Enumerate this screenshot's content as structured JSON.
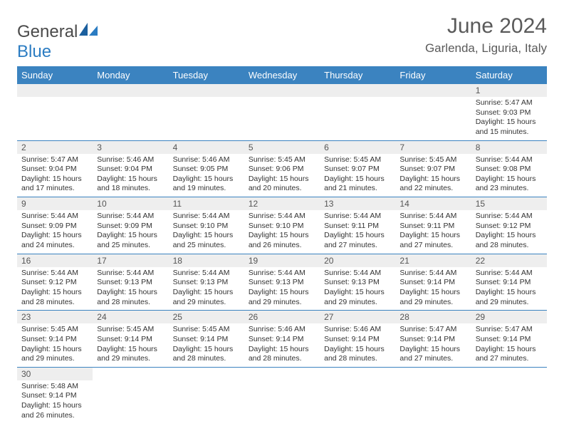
{
  "logo": {
    "text1": "General",
    "text2": "Blue"
  },
  "title": "June 2024",
  "location": "Garlenda, Liguria, Italy",
  "colors": {
    "header_bg": "#3b83c0",
    "header_text": "#ffffff",
    "daynum_bg": "#eeeeee",
    "cell_border": "#3b83c0",
    "text": "#333333",
    "title_text": "#5a5a5a",
    "logo_blue": "#2b7cc2"
  },
  "weekdays": [
    "Sunday",
    "Monday",
    "Tuesday",
    "Wednesday",
    "Thursday",
    "Friday",
    "Saturday"
  ],
  "weeks": [
    [
      null,
      null,
      null,
      null,
      null,
      null,
      {
        "n": "1",
        "sr": "Sunrise: 5:47 AM",
        "ss": "Sunset: 9:03 PM",
        "dl1": "Daylight: 15 hours",
        "dl2": "and 15 minutes."
      }
    ],
    [
      {
        "n": "2",
        "sr": "Sunrise: 5:47 AM",
        "ss": "Sunset: 9:04 PM",
        "dl1": "Daylight: 15 hours",
        "dl2": "and 17 minutes."
      },
      {
        "n": "3",
        "sr": "Sunrise: 5:46 AM",
        "ss": "Sunset: 9:04 PM",
        "dl1": "Daylight: 15 hours",
        "dl2": "and 18 minutes."
      },
      {
        "n": "4",
        "sr": "Sunrise: 5:46 AM",
        "ss": "Sunset: 9:05 PM",
        "dl1": "Daylight: 15 hours",
        "dl2": "and 19 minutes."
      },
      {
        "n": "5",
        "sr": "Sunrise: 5:45 AM",
        "ss": "Sunset: 9:06 PM",
        "dl1": "Daylight: 15 hours",
        "dl2": "and 20 minutes."
      },
      {
        "n": "6",
        "sr": "Sunrise: 5:45 AM",
        "ss": "Sunset: 9:07 PM",
        "dl1": "Daylight: 15 hours",
        "dl2": "and 21 minutes."
      },
      {
        "n": "7",
        "sr": "Sunrise: 5:45 AM",
        "ss": "Sunset: 9:07 PM",
        "dl1": "Daylight: 15 hours",
        "dl2": "and 22 minutes."
      },
      {
        "n": "8",
        "sr": "Sunrise: 5:44 AM",
        "ss": "Sunset: 9:08 PM",
        "dl1": "Daylight: 15 hours",
        "dl2": "and 23 minutes."
      }
    ],
    [
      {
        "n": "9",
        "sr": "Sunrise: 5:44 AM",
        "ss": "Sunset: 9:09 PM",
        "dl1": "Daylight: 15 hours",
        "dl2": "and 24 minutes."
      },
      {
        "n": "10",
        "sr": "Sunrise: 5:44 AM",
        "ss": "Sunset: 9:09 PM",
        "dl1": "Daylight: 15 hours",
        "dl2": "and 25 minutes."
      },
      {
        "n": "11",
        "sr": "Sunrise: 5:44 AM",
        "ss": "Sunset: 9:10 PM",
        "dl1": "Daylight: 15 hours",
        "dl2": "and 25 minutes."
      },
      {
        "n": "12",
        "sr": "Sunrise: 5:44 AM",
        "ss": "Sunset: 9:10 PM",
        "dl1": "Daylight: 15 hours",
        "dl2": "and 26 minutes."
      },
      {
        "n": "13",
        "sr": "Sunrise: 5:44 AM",
        "ss": "Sunset: 9:11 PM",
        "dl1": "Daylight: 15 hours",
        "dl2": "and 27 minutes."
      },
      {
        "n": "14",
        "sr": "Sunrise: 5:44 AM",
        "ss": "Sunset: 9:11 PM",
        "dl1": "Daylight: 15 hours",
        "dl2": "and 27 minutes."
      },
      {
        "n": "15",
        "sr": "Sunrise: 5:44 AM",
        "ss": "Sunset: 9:12 PM",
        "dl1": "Daylight: 15 hours",
        "dl2": "and 28 minutes."
      }
    ],
    [
      {
        "n": "16",
        "sr": "Sunrise: 5:44 AM",
        "ss": "Sunset: 9:12 PM",
        "dl1": "Daylight: 15 hours",
        "dl2": "and 28 minutes."
      },
      {
        "n": "17",
        "sr": "Sunrise: 5:44 AM",
        "ss": "Sunset: 9:13 PM",
        "dl1": "Daylight: 15 hours",
        "dl2": "and 28 minutes."
      },
      {
        "n": "18",
        "sr": "Sunrise: 5:44 AM",
        "ss": "Sunset: 9:13 PM",
        "dl1": "Daylight: 15 hours",
        "dl2": "and 29 minutes."
      },
      {
        "n": "19",
        "sr": "Sunrise: 5:44 AM",
        "ss": "Sunset: 9:13 PM",
        "dl1": "Daylight: 15 hours",
        "dl2": "and 29 minutes."
      },
      {
        "n": "20",
        "sr": "Sunrise: 5:44 AM",
        "ss": "Sunset: 9:13 PM",
        "dl1": "Daylight: 15 hours",
        "dl2": "and 29 minutes."
      },
      {
        "n": "21",
        "sr": "Sunrise: 5:44 AM",
        "ss": "Sunset: 9:14 PM",
        "dl1": "Daylight: 15 hours",
        "dl2": "and 29 minutes."
      },
      {
        "n": "22",
        "sr": "Sunrise: 5:44 AM",
        "ss": "Sunset: 9:14 PM",
        "dl1": "Daylight: 15 hours",
        "dl2": "and 29 minutes."
      }
    ],
    [
      {
        "n": "23",
        "sr": "Sunrise: 5:45 AM",
        "ss": "Sunset: 9:14 PM",
        "dl1": "Daylight: 15 hours",
        "dl2": "and 29 minutes."
      },
      {
        "n": "24",
        "sr": "Sunrise: 5:45 AM",
        "ss": "Sunset: 9:14 PM",
        "dl1": "Daylight: 15 hours",
        "dl2": "and 29 minutes."
      },
      {
        "n": "25",
        "sr": "Sunrise: 5:45 AM",
        "ss": "Sunset: 9:14 PM",
        "dl1": "Daylight: 15 hours",
        "dl2": "and 28 minutes."
      },
      {
        "n": "26",
        "sr": "Sunrise: 5:46 AM",
        "ss": "Sunset: 9:14 PM",
        "dl1": "Daylight: 15 hours",
        "dl2": "and 28 minutes."
      },
      {
        "n": "27",
        "sr": "Sunrise: 5:46 AM",
        "ss": "Sunset: 9:14 PM",
        "dl1": "Daylight: 15 hours",
        "dl2": "and 28 minutes."
      },
      {
        "n": "28",
        "sr": "Sunrise: 5:47 AM",
        "ss": "Sunset: 9:14 PM",
        "dl1": "Daylight: 15 hours",
        "dl2": "and 27 minutes."
      },
      {
        "n": "29",
        "sr": "Sunrise: 5:47 AM",
        "ss": "Sunset: 9:14 PM",
        "dl1": "Daylight: 15 hours",
        "dl2": "and 27 minutes."
      }
    ],
    [
      {
        "n": "30",
        "sr": "Sunrise: 5:48 AM",
        "ss": "Sunset: 9:14 PM",
        "dl1": "Daylight: 15 hours",
        "dl2": "and 26 minutes."
      },
      null,
      null,
      null,
      null,
      null,
      null
    ]
  ]
}
